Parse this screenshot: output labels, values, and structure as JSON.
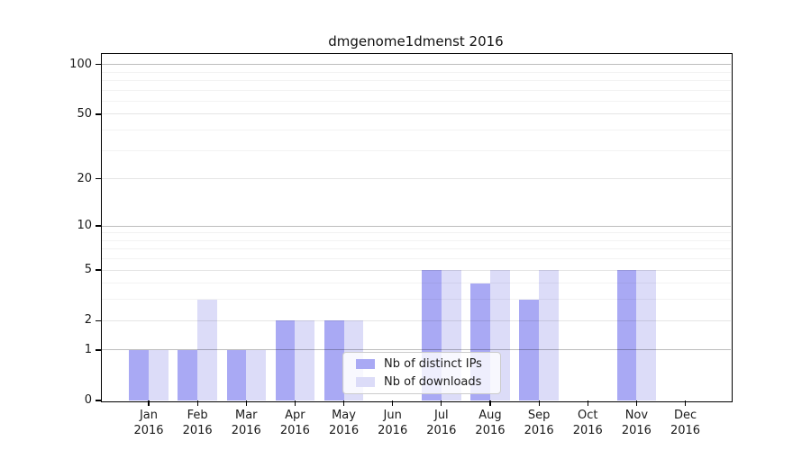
{
  "chart_data": {
    "type": "bar",
    "title": "dmgenome1dmenst 2016",
    "categories": [
      "Jan",
      "Feb",
      "Mar",
      "Apr",
      "May",
      "Jun",
      "Jul",
      "Aug",
      "Sep",
      "Oct",
      "Nov",
      "Dec"
    ],
    "category_second_line": "2016",
    "series": [
      {
        "name": "Nb of distinct IPs",
        "color": "#a9a9f4",
        "values": [
          1,
          1,
          1,
          2,
          2,
          0,
          5,
          4,
          3,
          0,
          5,
          0
        ]
      },
      {
        "name": "Nb of downloads",
        "color": "#dcdcf8",
        "values": [
          1,
          3,
          1,
          2,
          2,
          0,
          5,
          5,
          5,
          0,
          5,
          0
        ]
      }
    ],
    "yscale": "log1p",
    "ylim": [
      0,
      100
    ],
    "yticks": [
      0,
      1,
      2,
      5,
      10,
      20,
      50,
      100
    ],
    "minor_yticks": [
      3,
      4,
      6,
      7,
      8,
      9,
      30,
      40,
      60,
      70,
      80,
      90
    ],
    "emphasized_yticks": [
      1,
      10,
      100
    ],
    "grid": true,
    "grid_colors": {
      "minor": "rgba(0,0,0,0.05)",
      "major": "rgba(0,0,0,0.10)",
      "emphasized": "rgba(0,0,0,0.26)"
    },
    "legend_position": "lower center"
  }
}
